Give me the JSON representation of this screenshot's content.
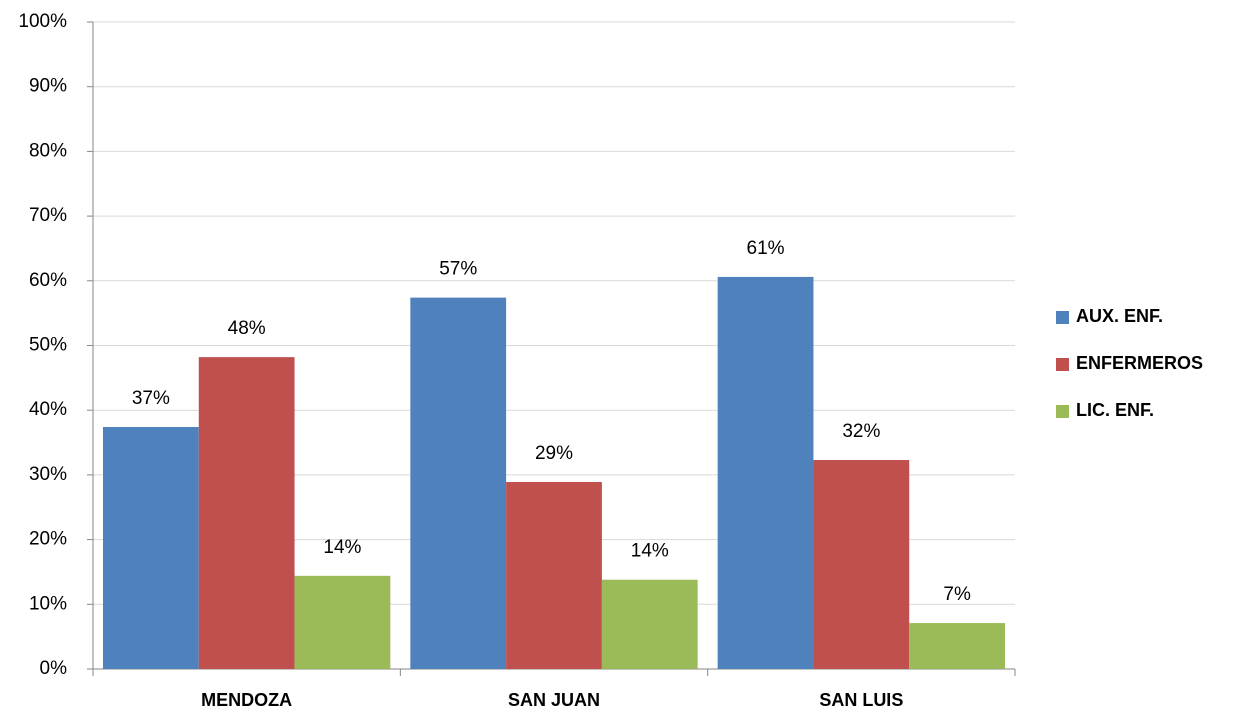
{
  "chart_data": {
    "type": "bar",
    "categories": [
      "MENDOZA",
      "SAN JUAN",
      "SAN LUIS"
    ],
    "series": [
      {
        "name": "AUX. ENF.",
        "color": "#4f81bd",
        "values": [
          37.4,
          57.4,
          60.6
        ],
        "value_labels": [
          "37%",
          "57%",
          "61%"
        ]
      },
      {
        "name": "ENFERMEROS",
        "color": "#c0504d",
        "values": [
          48.2,
          28.9,
          32.3
        ],
        "value_labels": [
          "48%",
          "29%",
          "32%"
        ]
      },
      {
        "name": "LIC. ENF.",
        "color": "#9bbb59",
        "values": [
          14.4,
          13.8,
          7.1
        ],
        "value_labels": [
          "14%",
          "14%",
          "7%"
        ]
      }
    ],
    "ylim": [
      0,
      100
    ],
    "yticks": [
      {
        "value": 0,
        "label": "0%"
      },
      {
        "value": 10,
        "label": "10%"
      },
      {
        "value": 20,
        "label": "20%"
      },
      {
        "value": 30,
        "label": "30%"
      },
      {
        "value": 40,
        "label": "40%"
      },
      {
        "value": 50,
        "label": "50%"
      },
      {
        "value": 60,
        "label": "60%"
      },
      {
        "value": 70,
        "label": "70%"
      },
      {
        "value": 80,
        "label": "80%"
      },
      {
        "value": 90,
        "label": "90%"
      },
      {
        "value": 100,
        "label": "100%"
      }
    ],
    "grid": true,
    "legend": "right"
  }
}
